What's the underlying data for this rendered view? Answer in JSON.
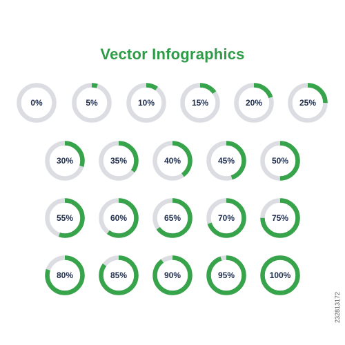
{
  "title": "Vector Infographics",
  "stock_id": "232813172",
  "colors": {
    "progress": "#37a34a",
    "track": "#dcdde2",
    "label": "#1f2d4d",
    "title": "#2e9b46"
  },
  "rows": [
    {
      "items": [
        {
          "value": 0,
          "label": "0%"
        },
        {
          "value": 5,
          "label": "5%"
        },
        {
          "value": 10,
          "label": "10%"
        },
        {
          "value": 15,
          "label": "15%"
        },
        {
          "value": 20,
          "label": "20%"
        },
        {
          "value": 25,
          "label": "25%"
        }
      ]
    },
    {
      "items": [
        {
          "value": 30,
          "label": "30%"
        },
        {
          "value": 35,
          "label": "35%"
        },
        {
          "value": 40,
          "label": "40%"
        },
        {
          "value": 45,
          "label": "45%"
        },
        {
          "value": 50,
          "label": "50%"
        }
      ]
    },
    {
      "items": [
        {
          "value": 55,
          "label": "55%"
        },
        {
          "value": 60,
          "label": "60%"
        },
        {
          "value": 65,
          "label": "65%"
        },
        {
          "value": 70,
          "label": "70%"
        },
        {
          "value": 75,
          "label": "75%"
        }
      ]
    },
    {
      "items": [
        {
          "value": 80,
          "label": "80%"
        },
        {
          "value": 85,
          "label": "85%"
        },
        {
          "value": 90,
          "label": "90%"
        },
        {
          "value": 95,
          "label": "95%"
        },
        {
          "value": 100,
          "label": "100%"
        }
      ]
    }
  ]
}
